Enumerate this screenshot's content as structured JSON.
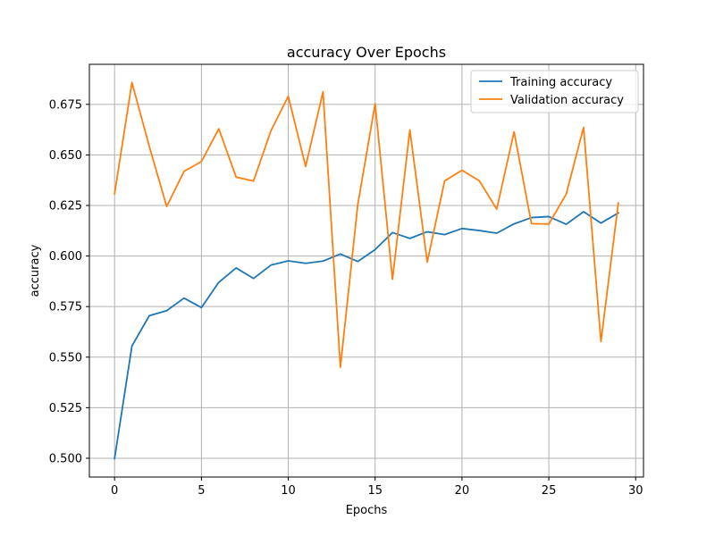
{
  "chart_data": {
    "type": "line",
    "title": "accuracy Over Epochs",
    "xlabel": "Epochs",
    "ylabel": "accuracy",
    "xlim": [
      -1.45,
      30.45
    ],
    "ylim": [
      0.4907,
      0.6948
    ],
    "xticks": [
      0,
      5,
      10,
      15,
      20,
      25,
      30
    ],
    "yticks": [
      0.5,
      0.525,
      0.55,
      0.575,
      0.6,
      0.625,
      0.65,
      0.675
    ],
    "xtick_labels": [
      "0",
      "5",
      "10",
      "15",
      "20",
      "25",
      "30"
    ],
    "ytick_labels": [
      "0.500",
      "0.525",
      "0.550",
      "0.575",
      "0.600",
      "0.625",
      "0.650",
      "0.675"
    ],
    "grid": true,
    "legend_position": "top-right",
    "x": [
      0,
      1,
      2,
      3,
      4,
      5,
      6,
      7,
      8,
      9,
      10,
      11,
      12,
      13,
      14,
      15,
      16,
      17,
      18,
      19,
      20,
      21,
      22,
      23,
      24,
      25,
      26,
      27,
      28,
      29
    ],
    "series": [
      {
        "name": "Training accuracy",
        "color": "#1f77b4",
        "values": [
          0.4998,
          0.5555,
          0.5705,
          0.573,
          0.5792,
          0.5745,
          0.587,
          0.5941,
          0.5889,
          0.5955,
          0.5976,
          0.5964,
          0.5975,
          0.601,
          0.5973,
          0.6032,
          0.6116,
          0.6087,
          0.612,
          0.6106,
          0.6136,
          0.6126,
          0.6113,
          0.6159,
          0.619,
          0.6195,
          0.6157,
          0.6219,
          0.6163,
          0.6213
        ]
      },
      {
        "name": "Validation accuracy",
        "color": "#ff7f0e",
        "values": [
          0.6307,
          0.6858,
          0.6542,
          0.6245,
          0.6419,
          0.6467,
          0.6629,
          0.639,
          0.6371,
          0.6619,
          0.679,
          0.6443,
          0.6812,
          0.545,
          0.6253,
          0.6753,
          0.5885,
          0.6624,
          0.597,
          0.6371,
          0.6424,
          0.6372,
          0.6232,
          0.6614,
          0.616,
          0.6158,
          0.6306,
          0.6636,
          0.5577,
          0.6262
        ]
      }
    ]
  }
}
